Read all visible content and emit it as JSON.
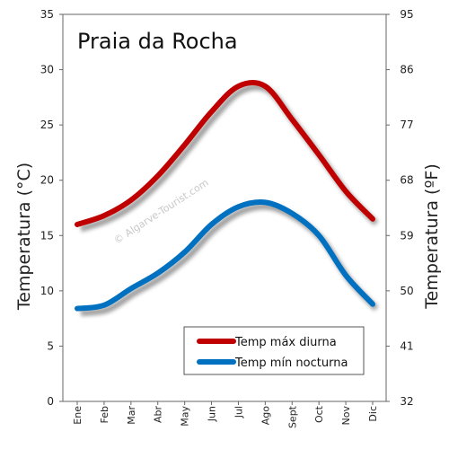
{
  "chart_data": {
    "type": "line",
    "title": "Praia da Rocha",
    "watermark": "© Algarve-Tourist.com",
    "categories": [
      "Ene",
      "Feb",
      "Mar",
      "Abr",
      "May",
      "Jun",
      "Jul",
      "Ago",
      "Sept",
      "Oct",
      "Nov",
      "Dic"
    ],
    "series": [
      {
        "name": "Temp máx diurna",
        "color": "#c00000",
        "values": [
          16.0,
          16.8,
          18.2,
          20.4,
          23.2,
          26.2,
          28.5,
          28.5,
          25.5,
          22.3,
          19.0,
          16.5
        ]
      },
      {
        "name": "Temp mín nocturna",
        "color": "#0070c0",
        "values": [
          8.4,
          8.7,
          10.2,
          11.6,
          13.5,
          16.0,
          17.6,
          18.0,
          17.0,
          15.0,
          11.4,
          8.8
        ]
      }
    ],
    "ylabel": "Temperatura (°C)",
    "ylabel_right": "Temperatura (ºF)",
    "ylim": [
      0,
      35
    ],
    "yticks": [
      0,
      5,
      10,
      15,
      20,
      25,
      30,
      35
    ],
    "yticks_right": [
      32,
      41,
      50,
      59,
      68,
      77,
      86,
      95
    ],
    "grid": false,
    "legend_position": "bottom-right"
  }
}
